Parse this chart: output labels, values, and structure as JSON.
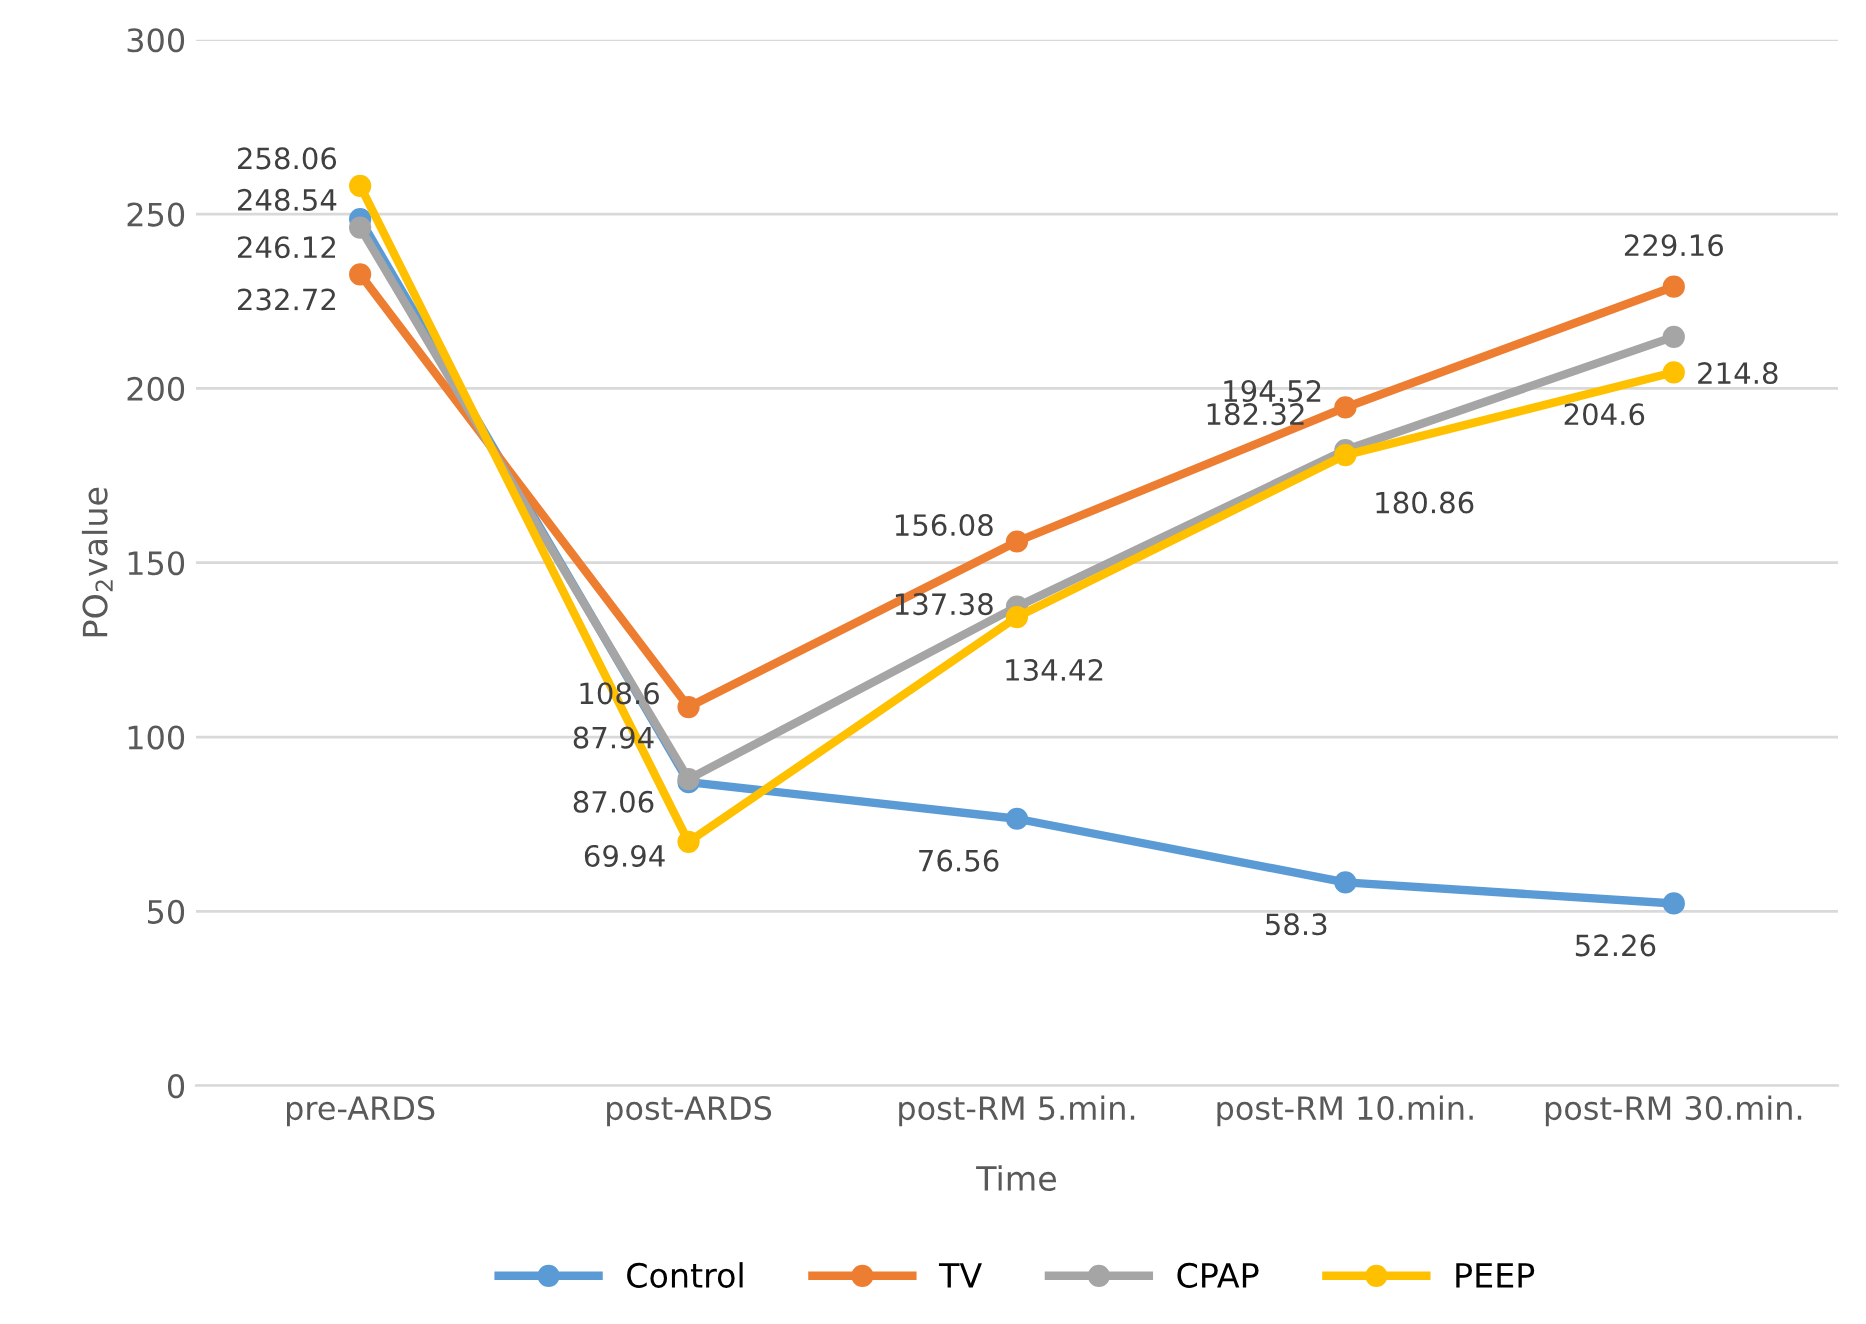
{
  "chart_data": {
    "type": "line",
    "xlabel": "Time",
    "ylabel": "PO$_{2}$value",
    "categories": [
      "pre-ARDS",
      "post-ARDS",
      "post-RM 5.min.",
      "post-RM 10.min.",
      "post-RM 30.min."
    ],
    "series": [
      {
        "name": "Control",
        "color": "#5b9bd5",
        "values": [
          248.54,
          87.06,
          76.56,
          58.3,
          52.26
        ]
      },
      {
        "name": "TV",
        "color": "#ed7d31",
        "values": [
          232.72,
          108.6,
          156.08,
          194.52,
          229.16
        ]
      },
      {
        "name": "CPAP",
        "color": "#a5a5a5",
        "values": [
          246.12,
          87.94,
          137.38,
          182.32,
          214.8
        ]
      },
      {
        "name": "PEEP",
        "color": "#ffc000",
        "values": [
          258.06,
          69.94,
          134.42,
          180.86,
          204.6
        ]
      }
    ],
    "ylim": [
      0,
      300
    ],
    "yticks": [
      0,
      50,
      100,
      150,
      200,
      250,
      300
    ],
    "grid": "y",
    "legend": "bottom",
    "marker": "circle",
    "line_style": "solid",
    "data_labels": true
  }
}
